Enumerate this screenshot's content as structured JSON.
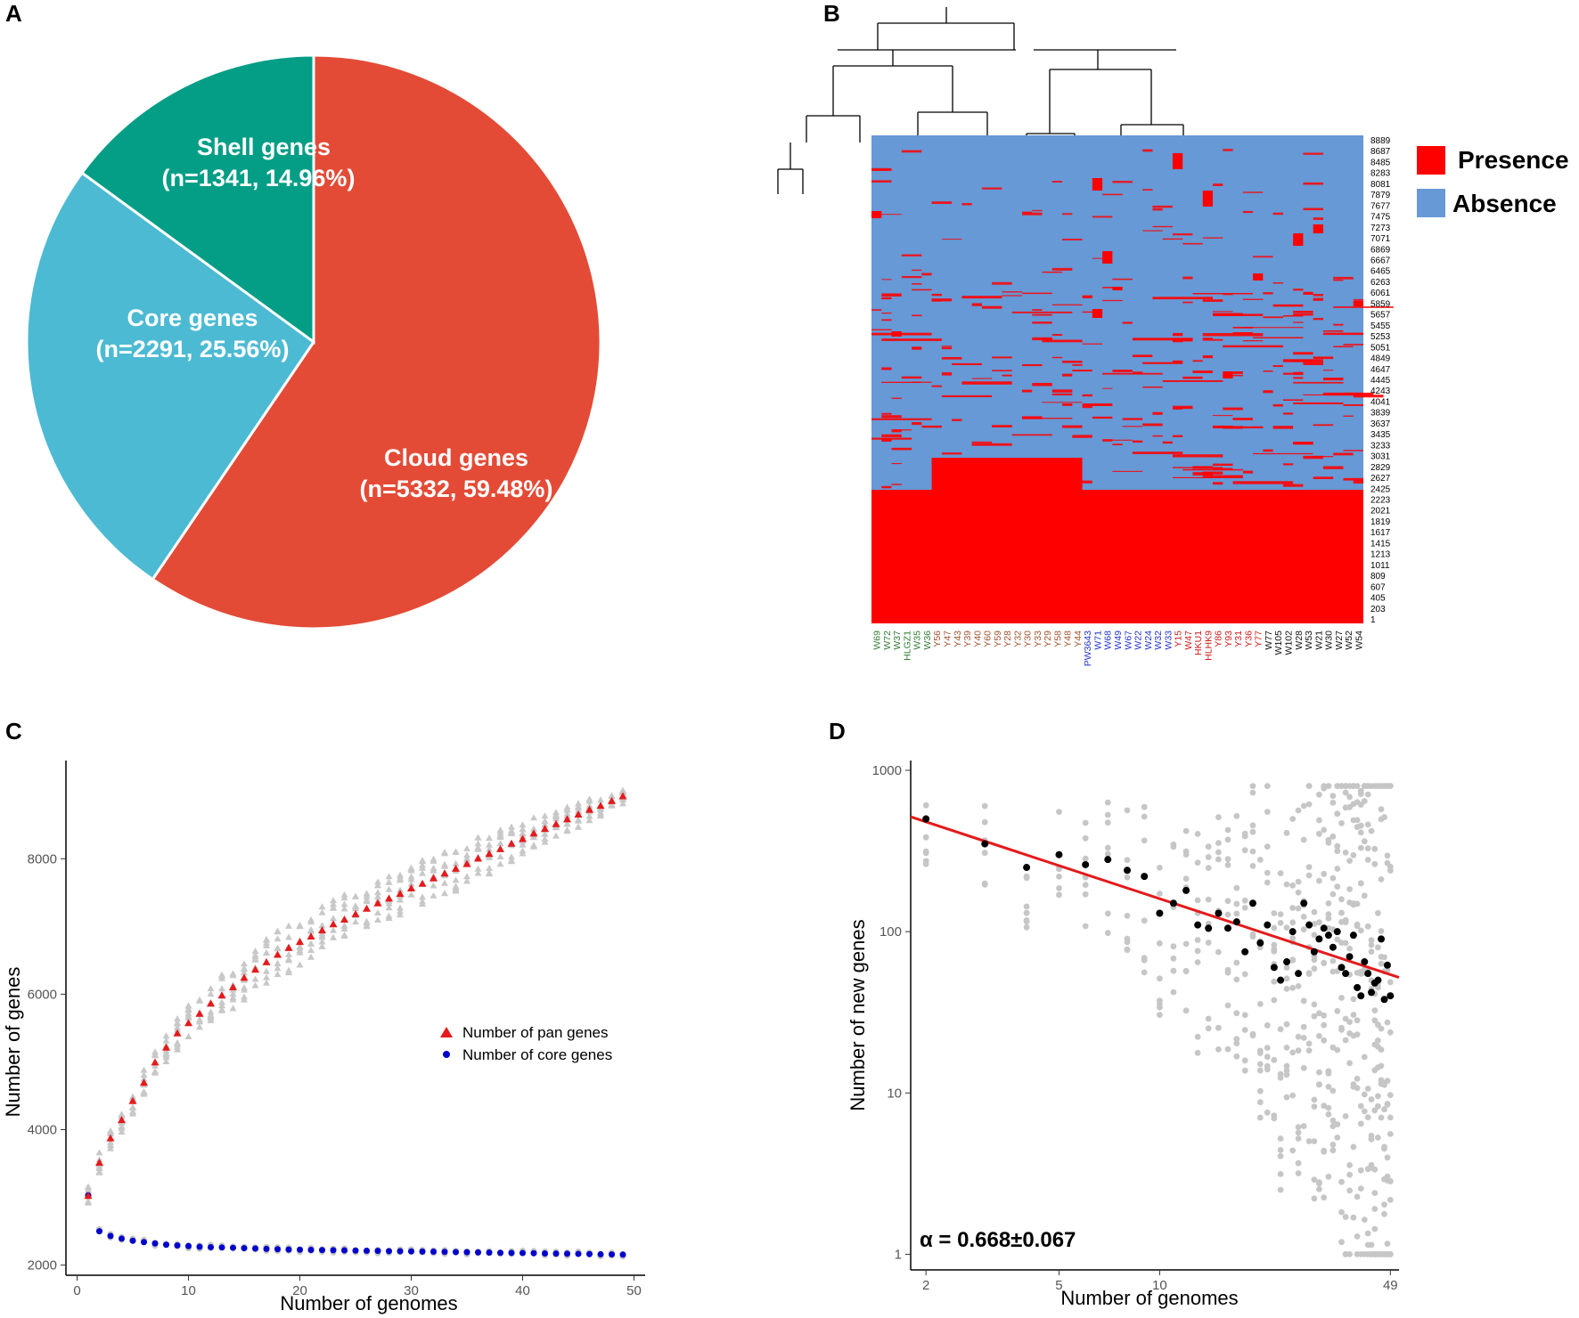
{
  "panels": {
    "a": {
      "letter": "A"
    },
    "b": {
      "letter": "B"
    },
    "c": {
      "letter": "C"
    },
    "d": {
      "letter": "D"
    }
  },
  "chart_data": [
    {
      "panel": "A",
      "type": "pie",
      "title": "",
      "slices": [
        {
          "name": "Cloud genes",
          "value": 5332,
          "percent": 59.48,
          "label_line1": "Cloud genes",
          "label_line2": "(n=5332, 59.48%)",
          "color": "#e34b36"
        },
        {
          "name": "Core genes",
          "value": 2291,
          "percent": 25.56,
          "label_line1": "Core genes",
          "label_line2": "(n=2291, 25.56%)",
          "color": "#4dbad3"
        },
        {
          "name": "Shell genes",
          "value": 1341,
          "percent": 14.96,
          "label_line1": "Shell genes",
          "label_line2": "(n=1341, 14.96%)",
          "color": "#039e85"
        }
      ]
    },
    {
      "panel": "B",
      "type": "heatmap",
      "legend": [
        {
          "label": "Presence",
          "color": "#ff0000"
        },
        {
          "label": "Absence",
          "color": "#6699d6"
        }
      ],
      "row_labels": [
        "8889",
        "8687",
        "8485",
        "8283",
        "8081",
        "7879",
        "7677",
        "7475",
        "7273",
        "7071",
        "6869",
        "6667",
        "6465",
        "6263",
        "6061",
        "5859",
        "5657",
        "5455",
        "5253",
        "5051",
        "4849",
        "4647",
        "4445",
        "4243",
        "4041",
        "3839",
        "3637",
        "3435",
        "3233",
        "3031",
        "2829",
        "2627",
        "2425",
        "2223",
        "2021",
        "1819",
        "1617",
        "1415",
        "1213",
        "1011",
        "809",
        "607",
        "405",
        "203",
        "1"
      ],
      "columns": [
        {
          "name": "W69",
          "group": "green"
        },
        {
          "name": "W72",
          "group": "green"
        },
        {
          "name": "W37",
          "group": "green"
        },
        {
          "name": "HLGZ1",
          "group": "green"
        },
        {
          "name": "W35",
          "group": "green"
        },
        {
          "name": "W36",
          "group": "green"
        },
        {
          "name": "Y56",
          "group": "brown"
        },
        {
          "name": "Y47",
          "group": "brown"
        },
        {
          "name": "Y43",
          "group": "brown"
        },
        {
          "name": "Y39",
          "group": "brown"
        },
        {
          "name": "Y40",
          "group": "brown"
        },
        {
          "name": "Y60",
          "group": "brown"
        },
        {
          "name": "Y59",
          "group": "brown"
        },
        {
          "name": "Y28",
          "group": "brown"
        },
        {
          "name": "Y32",
          "group": "brown"
        },
        {
          "name": "Y30",
          "group": "brown"
        },
        {
          "name": "Y33",
          "group": "brown"
        },
        {
          "name": "Y29",
          "group": "brown"
        },
        {
          "name": "Y58",
          "group": "brown"
        },
        {
          "name": "Y48",
          "group": "brown"
        },
        {
          "name": "Y44",
          "group": "brown"
        },
        {
          "name": "PW3643",
          "group": "blue"
        },
        {
          "name": "W71",
          "group": "blue"
        },
        {
          "name": "W68",
          "group": "blue"
        },
        {
          "name": "W49",
          "group": "blue"
        },
        {
          "name": "W67",
          "group": "blue"
        },
        {
          "name": "W22",
          "group": "blue"
        },
        {
          "name": "W24",
          "group": "blue"
        },
        {
          "name": "W32",
          "group": "blue"
        },
        {
          "name": "W33",
          "group": "blue"
        },
        {
          "name": "Y15",
          "group": "red"
        },
        {
          "name": "W47",
          "group": "red"
        },
        {
          "name": "HKU1",
          "group": "red"
        },
        {
          "name": "HLHK9",
          "group": "red"
        },
        {
          "name": "Y86",
          "group": "red"
        },
        {
          "name": "Y93",
          "group": "red"
        },
        {
          "name": "Y31",
          "group": "red"
        },
        {
          "name": "Y36",
          "group": "red"
        },
        {
          "name": "Y77",
          "group": "red"
        },
        {
          "name": "W77",
          "group": "black"
        },
        {
          "name": "W105",
          "group": "black"
        },
        {
          "name": "W102",
          "group": "black"
        },
        {
          "name": "W28",
          "group": "black"
        },
        {
          "name": "W53",
          "group": "black"
        },
        {
          "name": "W21",
          "group": "black"
        },
        {
          "name": "W30",
          "group": "black"
        },
        {
          "name": "W27",
          "group": "black"
        },
        {
          "name": "W52",
          "group": "black"
        },
        {
          "name": "W54",
          "group": "black"
        }
      ],
      "group_colors": {
        "green": "#2e7d32",
        "brown": "#a0522d",
        "blue": "#2233cc",
        "red": "#d21a1a",
        "black": "#111111"
      }
    },
    {
      "panel": "C",
      "type": "scatter",
      "xlabel": "Number of genomes",
      "ylabel": "Number of genes",
      "xlim": [
        -1,
        51
      ],
      "ylim": [
        1850,
        9450
      ],
      "xticks": [
        0,
        10,
        20,
        30,
        40,
        50
      ],
      "yticks": [
        2000,
        4000,
        6000,
        8000
      ],
      "series": [
        {
          "name": "Number of pan genes",
          "marker": "triangle",
          "color": "#e41a1c",
          "x": [
            1,
            2,
            3,
            4,
            5,
            6,
            7,
            8,
            9,
            10,
            11,
            12,
            13,
            14,
            15,
            16,
            17,
            18,
            19,
            20,
            21,
            22,
            23,
            24,
            25,
            26,
            27,
            28,
            29,
            30,
            31,
            32,
            33,
            34,
            35,
            36,
            37,
            38,
            39,
            40,
            41,
            42,
            43,
            44,
            45,
            46,
            47,
            48,
            49
          ],
          "values": [
            3030,
            3520,
            3880,
            4150,
            4430,
            4700,
            5000,
            5220,
            5430,
            5580,
            5720,
            5870,
            5990,
            6110,
            6250,
            6370,
            6480,
            6590,
            6690,
            6780,
            6860,
            6950,
            7040,
            7110,
            7190,
            7270,
            7350,
            7420,
            7490,
            7570,
            7640,
            7720,
            7790,
            7860,
            7930,
            8010,
            8080,
            8150,
            8230,
            8300,
            8380,
            8450,
            8520,
            8590,
            8660,
            8730,
            8790,
            8860,
            8930
          ]
        },
        {
          "name": "Number of core genes",
          "marker": "circle",
          "color": "#0000cc",
          "x": [
            1,
            2,
            3,
            4,
            5,
            6,
            7,
            8,
            9,
            10,
            11,
            12,
            13,
            14,
            15,
            16,
            17,
            18,
            19,
            20,
            21,
            22,
            23,
            24,
            25,
            26,
            27,
            28,
            29,
            30,
            31,
            32,
            33,
            34,
            35,
            36,
            37,
            38,
            39,
            40,
            41,
            42,
            43,
            44,
            45,
            46,
            47,
            48,
            49
          ],
          "values": [
            3030,
            2500,
            2430,
            2390,
            2360,
            2340,
            2320,
            2300,
            2290,
            2280,
            2270,
            2265,
            2260,
            2255,
            2250,
            2245,
            2240,
            2235,
            2230,
            2228,
            2225,
            2222,
            2220,
            2218,
            2215,
            2212,
            2210,
            2207,
            2205,
            2202,
            2200,
            2198,
            2195,
            2192,
            2190,
            2188,
            2185,
            2182,
            2180,
            2178,
            2175,
            2172,
            2170,
            2168,
            2165,
            2162,
            2160,
            2158,
            2155
          ]
        }
      ],
      "legend": [
        "Number of pan genes",
        "Number of core genes"
      ]
    },
    {
      "panel": "D",
      "type": "scatter",
      "xscale": "log",
      "yscale": "log",
      "xlabel": "Number of genomes",
      "ylabel": "Number of new genes",
      "xlim": [
        1.8,
        52
      ],
      "ylim": [
        0.8,
        1150
      ],
      "xtick_labels": [
        "2",
        "5",
        "10",
        "49"
      ],
      "xtick_values": [
        2,
        5,
        10,
        49
      ],
      "ytick_labels": [
        "1",
        "10",
        "100",
        "1000"
      ],
      "ytick_values": [
        1,
        10,
        100,
        1000
      ],
      "fit_line": {
        "color": "#e41a1c",
        "x_range": [
          1.8,
          52
        ],
        "y_at_x2": 480,
        "y_at_x52": 52
      },
      "median_points": {
        "x": [
          2,
          3,
          4,
          5,
          6,
          7,
          8,
          9,
          10,
          11,
          12,
          13,
          14,
          15,
          16,
          17,
          18,
          19,
          20,
          21,
          22,
          23,
          24,
          25,
          26,
          27,
          28,
          29,
          30,
          31,
          32,
          33,
          34,
          35,
          36,
          37,
          38,
          39,
          40,
          41,
          42,
          43,
          44,
          45,
          46,
          47,
          48,
          49
        ],
        "values": [
          500,
          350,
          250,
          300,
          260,
          280,
          240,
          220,
          130,
          150,
          180,
          110,
          105,
          130,
          105,
          115,
          75,
          150,
          85,
          110,
          60,
          50,
          65,
          100,
          55,
          150,
          110,
          75,
          90,
          105,
          95,
          80,
          100,
          60,
          55,
          70,
          95,
          45,
          40,
          65,
          55,
          42,
          48,
          50,
          90,
          38,
          62,
          40
        ]
      },
      "alpha_label": "α = 0.668±0.067"
    }
  ]
}
